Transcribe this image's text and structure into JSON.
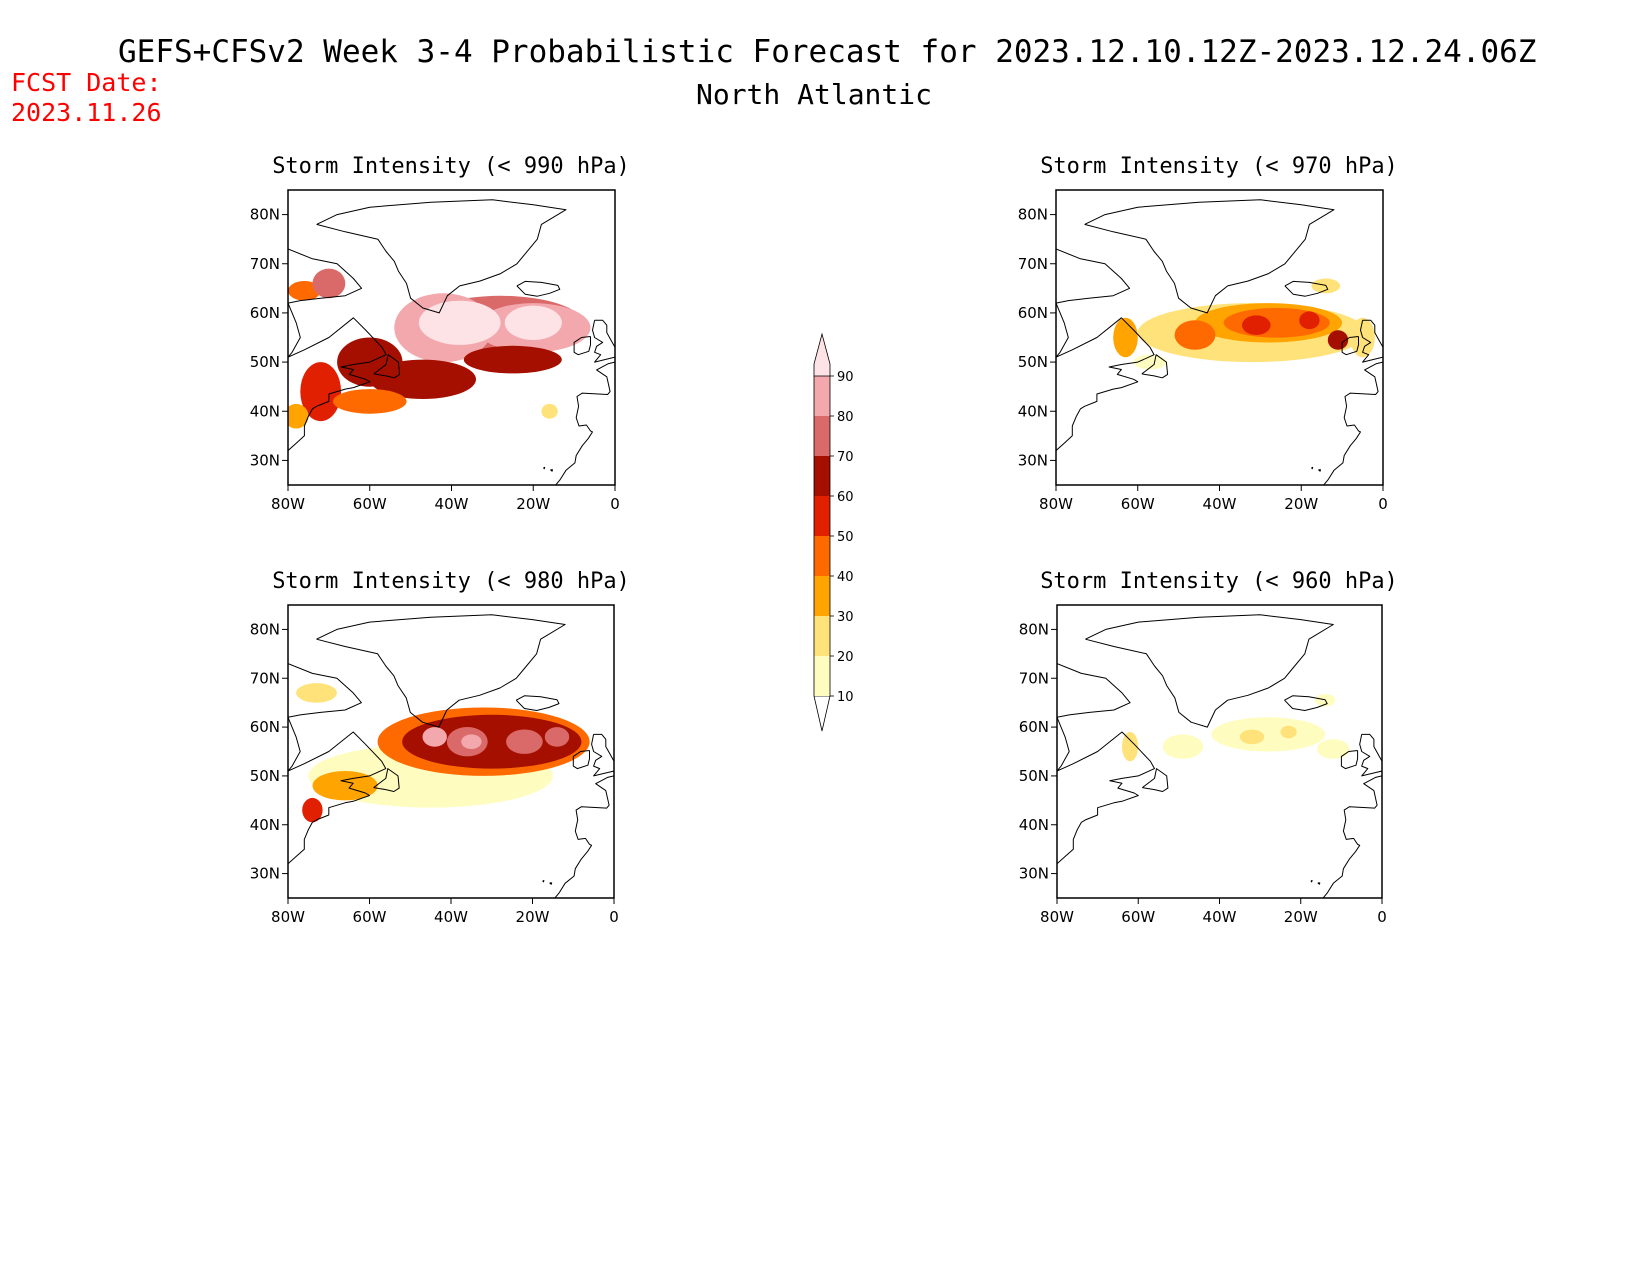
{
  "title": "GEFS+CFSv2 Week 3-4 Probabilistic Forecast for 2023.12.10.12Z-2023.12.24.06Z",
  "subtitle": "North Atlantic",
  "fcst_date_label": "FCST Date:",
  "fcst_date": "2023.11.26",
  "colorbar": {
    "levels": [
      10,
      20,
      30,
      40,
      50,
      60,
      70,
      80,
      90
    ],
    "labels": [
      "10",
      "20",
      "30",
      "40",
      "50",
      "60",
      "70",
      "80",
      "90"
    ],
    "colors": [
      "#fffcc0",
      "#ffe27a",
      "#ffa400",
      "#ff6a00",
      "#e02000",
      "#a50f00",
      "#da6a6a",
      "#f2a8ac",
      "#fde3e6"
    ]
  },
  "lat_labels": [
    "80N",
    "70N",
    "60N",
    "50N",
    "40N",
    "30N"
  ],
  "lon_labels": [
    "80W",
    "60W",
    "40W",
    "20W",
    "0"
  ],
  "chart_data": [
    {
      "type": "heatmap",
      "title": "Storm Intensity (< 990 hPa)",
      "xlim": [
        -80,
        0
      ],
      "ylim": [
        25,
        85
      ],
      "blobs": [
        {
          "lon": -28,
          "lat": 58,
          "rx": 20,
          "ry": 5.5,
          "level": 70
        },
        {
          "lon": -42,
          "lat": 57,
          "rx": 12,
          "ry": 7,
          "level": 80
        },
        {
          "lon": -20,
          "lat": 57,
          "rx": 14,
          "ry": 5,
          "level": 80
        },
        {
          "lon": -38,
          "lat": 58,
          "rx": 10,
          "ry": 4.5,
          "level": 90
        },
        {
          "lon": -20,
          "lat": 58,
          "rx": 7,
          "ry": 3.5,
          "level": 90
        },
        {
          "lon": -47,
          "lat": 46.5,
          "rx": 13,
          "ry": 4,
          "level": 60
        },
        {
          "lon": -60,
          "lat": 50,
          "rx": 8,
          "ry": 5,
          "level": 60
        },
        {
          "lon": -25,
          "lat": 50.5,
          "rx": 12,
          "ry": 2.8,
          "level": 60
        },
        {
          "lon": -72,
          "lat": 44,
          "rx": 5,
          "ry": 6,
          "level": 50
        },
        {
          "lon": -76,
          "lat": 64.5,
          "rx": 4,
          "ry": 2,
          "level": 40
        },
        {
          "lon": -70,
          "lat": 66,
          "rx": 4,
          "ry": 3,
          "level": 70
        },
        {
          "lon": -60,
          "lat": 42,
          "rx": 9,
          "ry": 2.5,
          "level": 40
        },
        {
          "lon": -78,
          "lat": 39,
          "rx": 3,
          "ry": 2.5,
          "level": 30
        },
        {
          "lon": -16,
          "lat": 40,
          "rx": 2,
          "ry": 1.5,
          "level": 20
        }
      ]
    },
    {
      "type": "heatmap",
      "title": "Storm Intensity (< 970 hPa)",
      "xlim": [
        -80,
        0
      ],
      "ylim": [
        25,
        85
      ],
      "blobs": [
        {
          "lon": -32,
          "lat": 56,
          "rx": 28,
          "ry": 6,
          "level": 20
        },
        {
          "lon": -28,
          "lat": 58,
          "rx": 18,
          "ry": 4,
          "level": 30
        },
        {
          "lon": -26,
          "lat": 58,
          "rx": 13,
          "ry": 3,
          "level": 40
        },
        {
          "lon": -46,
          "lat": 55.5,
          "rx": 5,
          "ry": 3,
          "level": 40
        },
        {
          "lon": -31,
          "lat": 57.5,
          "rx": 3.5,
          "ry": 2,
          "level": 50
        },
        {
          "lon": -18,
          "lat": 58.5,
          "rx": 2.5,
          "ry": 1.8,
          "level": 50
        },
        {
          "lon": -11,
          "lat": 54.5,
          "rx": 2.5,
          "ry": 2,
          "level": 60
        },
        {
          "lon": -63,
          "lat": 55,
          "rx": 3,
          "ry": 4,
          "level": 30
        },
        {
          "lon": -14,
          "lat": 65.5,
          "rx": 3.5,
          "ry": 1.5,
          "level": 20
        },
        {
          "lon": -5,
          "lat": 55,
          "rx": 3,
          "ry": 4,
          "level": 20
        },
        {
          "lon": -57,
          "lat": 50,
          "rx": 4,
          "ry": 1.5,
          "level": 10
        }
      ]
    },
    {
      "type": "heatmap",
      "title": "Storm Intensity (< 980 hPa)",
      "xlim": [
        -80,
        0
      ],
      "ylim": [
        25,
        85
      ],
      "blobs": [
        {
          "lon": -45,
          "lat": 50,
          "rx": 30,
          "ry": 6.5,
          "level": 10
        },
        {
          "lon": -32,
          "lat": 57,
          "rx": 26,
          "ry": 7,
          "level": 40
        },
        {
          "lon": -30,
          "lat": 57,
          "rx": 22,
          "ry": 5.5,
          "level": 60
        },
        {
          "lon": -36,
          "lat": 57,
          "rx": 5,
          "ry": 3,
          "level": 70
        },
        {
          "lon": -22,
          "lat": 57,
          "rx": 4.5,
          "ry": 2.5,
          "level": 70
        },
        {
          "lon": -14,
          "lat": 58,
          "rx": 3,
          "ry": 2,
          "level": 70
        },
        {
          "lon": -44,
          "lat": 58,
          "rx": 3,
          "ry": 2,
          "level": 80
        },
        {
          "lon": -35,
          "lat": 57,
          "rx": 2.5,
          "ry": 1.5,
          "level": 80
        },
        {
          "lon": -66,
          "lat": 48,
          "rx": 8,
          "ry": 3,
          "level": 30
        },
        {
          "lon": -74,
          "lat": 43,
          "rx": 2.5,
          "ry": 2.5,
          "level": 50
        },
        {
          "lon": -73,
          "lat": 67,
          "rx": 5,
          "ry": 2,
          "level": 20
        }
      ]
    },
    {
      "type": "heatmap",
      "title": "Storm Intensity (< 960 hPa)",
      "xlim": [
        -80,
        0
      ],
      "ylim": [
        25,
        85
      ],
      "blobs": [
        {
          "lon": -28,
          "lat": 58.5,
          "rx": 14,
          "ry": 3.5,
          "level": 10
        },
        {
          "lon": -49,
          "lat": 56,
          "rx": 5,
          "ry": 2.5,
          "level": 10
        },
        {
          "lon": -12,
          "lat": 55.5,
          "rx": 4,
          "ry": 2,
          "level": 10
        },
        {
          "lon": -32,
          "lat": 58,
          "rx": 3,
          "ry": 1.5,
          "level": 20
        },
        {
          "lon": -23,
          "lat": 59,
          "rx": 2,
          "ry": 1.3,
          "level": 20
        },
        {
          "lon": -14,
          "lat": 65.5,
          "rx": 2.5,
          "ry": 1.3,
          "level": 10
        },
        {
          "lon": -62,
          "lat": 56,
          "rx": 2,
          "ry": 3,
          "level": 20
        }
      ]
    }
  ]
}
